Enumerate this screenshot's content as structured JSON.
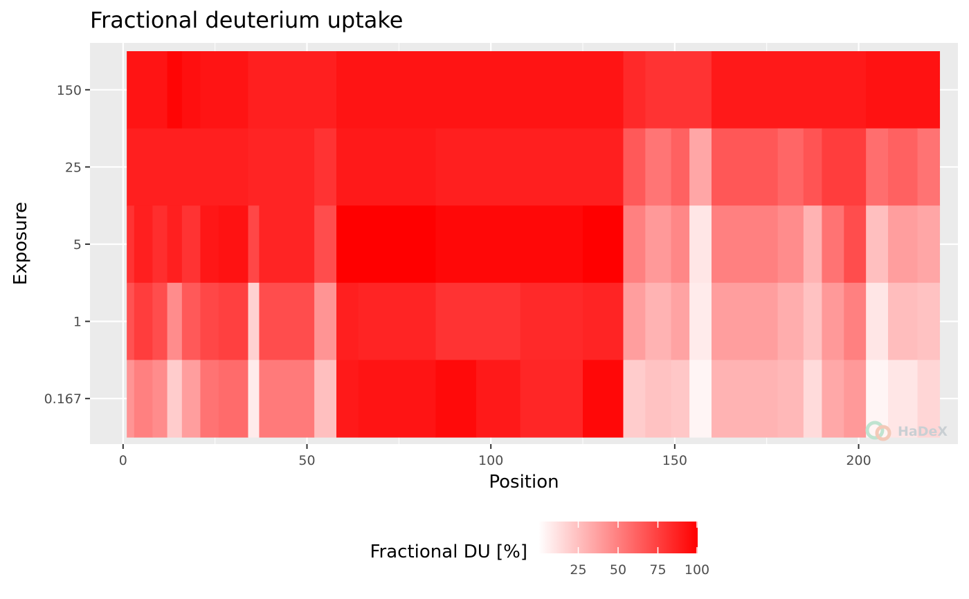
{
  "chart_data": {
    "type": "heatmap",
    "title": "Fractional deuterium uptake",
    "xlabel": "Position",
    "ylabel": "Exposure",
    "xlim": [
      -9,
      227
    ],
    "x_ticks": [
      0,
      50,
      100,
      150,
      200
    ],
    "y_categories": [
      "0.167",
      "1",
      "5",
      "25",
      "150"
    ],
    "grid": true,
    "legend": {
      "title": "Fractional DU [%]",
      "position": "bottom",
      "range": [
        0,
        100
      ],
      "ticks": [
        25,
        50,
        75,
        100
      ],
      "low_color": "#ffffff",
      "high_color": "#ff0000"
    },
    "watermark": "HaDeX",
    "cells": [
      {
        "exposure": "150",
        "segments": [
          [
            1,
            12,
            92
          ],
          [
            12,
            16,
            98
          ],
          [
            16,
            21,
            94
          ],
          [
            21,
            34,
            92
          ],
          [
            34,
            58,
            88
          ],
          [
            58,
            136,
            92
          ],
          [
            136,
            142,
            84
          ],
          [
            142,
            160,
            80
          ],
          [
            160,
            202,
            90
          ],
          [
            202,
            222,
            93
          ]
        ]
      },
      {
        "exposure": "25",
        "segments": [
          [
            1,
            34,
            88
          ],
          [
            34,
            52,
            86
          ],
          [
            52,
            58,
            80
          ],
          [
            58,
            85,
            90
          ],
          [
            85,
            136,
            88
          ],
          [
            136,
            142,
            65
          ],
          [
            142,
            149,
            54
          ],
          [
            149,
            154,
            62
          ],
          [
            154,
            160,
            35
          ],
          [
            160,
            178,
            66
          ],
          [
            178,
            185,
            60
          ],
          [
            185,
            190,
            67
          ],
          [
            190,
            202,
            76
          ],
          [
            202,
            208,
            57
          ],
          [
            208,
            216,
            62
          ],
          [
            216,
            222,
            55
          ]
        ]
      },
      {
        "exposure": "5",
        "segments": [
          [
            1,
            3,
            80
          ],
          [
            3,
            8,
            88
          ],
          [
            8,
            12,
            82
          ],
          [
            12,
            16,
            88
          ],
          [
            16,
            21,
            80
          ],
          [
            21,
            26,
            91
          ],
          [
            26,
            34,
            93
          ],
          [
            34,
            37,
            72
          ],
          [
            37,
            52,
            86
          ],
          [
            52,
            58,
            70
          ],
          [
            58,
            85,
            100
          ],
          [
            85,
            125,
            97
          ],
          [
            125,
            136,
            100
          ],
          [
            136,
            142,
            50
          ],
          [
            142,
            149,
            40
          ],
          [
            149,
            154,
            47
          ],
          [
            154,
            160,
            10
          ],
          [
            160,
            178,
            50
          ],
          [
            178,
            185,
            45
          ],
          [
            185,
            190,
            30
          ],
          [
            190,
            196,
            55
          ],
          [
            196,
            202,
            70
          ],
          [
            202,
            208,
            25
          ],
          [
            208,
            216,
            38
          ],
          [
            216,
            222,
            35
          ]
        ]
      },
      {
        "exposure": "1",
        "segments": [
          [
            1,
            3,
            68
          ],
          [
            3,
            8,
            76
          ],
          [
            8,
            12,
            70
          ],
          [
            12,
            16,
            45
          ],
          [
            16,
            21,
            65
          ],
          [
            21,
            26,
            72
          ],
          [
            26,
            34,
            75
          ],
          [
            34,
            37,
            18
          ],
          [
            37,
            52,
            70
          ],
          [
            52,
            58,
            42
          ],
          [
            58,
            64,
            88
          ],
          [
            64,
            85,
            86
          ],
          [
            85,
            108,
            80
          ],
          [
            108,
            125,
            84
          ],
          [
            125,
            136,
            86
          ],
          [
            136,
            142,
            38
          ],
          [
            142,
            149,
            30
          ],
          [
            149,
            154,
            36
          ],
          [
            154,
            160,
            8
          ],
          [
            160,
            178,
            38
          ],
          [
            178,
            185,
            32
          ],
          [
            185,
            190,
            24
          ],
          [
            190,
            196,
            40
          ],
          [
            196,
            202,
            50
          ],
          [
            202,
            208,
            10
          ],
          [
            208,
            216,
            26
          ],
          [
            216,
            222,
            24
          ]
        ]
      },
      {
        "exposure": "0.167",
        "segments": [
          [
            1,
            3,
            42
          ],
          [
            3,
            8,
            50
          ],
          [
            8,
            12,
            45
          ],
          [
            12,
            16,
            20
          ],
          [
            16,
            21,
            38
          ],
          [
            21,
            26,
            55
          ],
          [
            26,
            34,
            58
          ],
          [
            34,
            37,
            8
          ],
          [
            37,
            52,
            52
          ],
          [
            52,
            58,
            25
          ],
          [
            58,
            64,
            90
          ],
          [
            64,
            85,
            92
          ],
          [
            85,
            96,
            96
          ],
          [
            96,
            108,
            90
          ],
          [
            108,
            125,
            85
          ],
          [
            125,
            136,
            97
          ],
          [
            136,
            142,
            20
          ],
          [
            142,
            149,
            24
          ],
          [
            149,
            154,
            22
          ],
          [
            154,
            160,
            4
          ],
          [
            160,
            178,
            30
          ],
          [
            178,
            185,
            28
          ],
          [
            185,
            190,
            14
          ],
          [
            190,
            196,
            34
          ],
          [
            196,
            202,
            40
          ],
          [
            202,
            208,
            4
          ],
          [
            208,
            216,
            10
          ],
          [
            216,
            222,
            16
          ]
        ]
      }
    ]
  }
}
